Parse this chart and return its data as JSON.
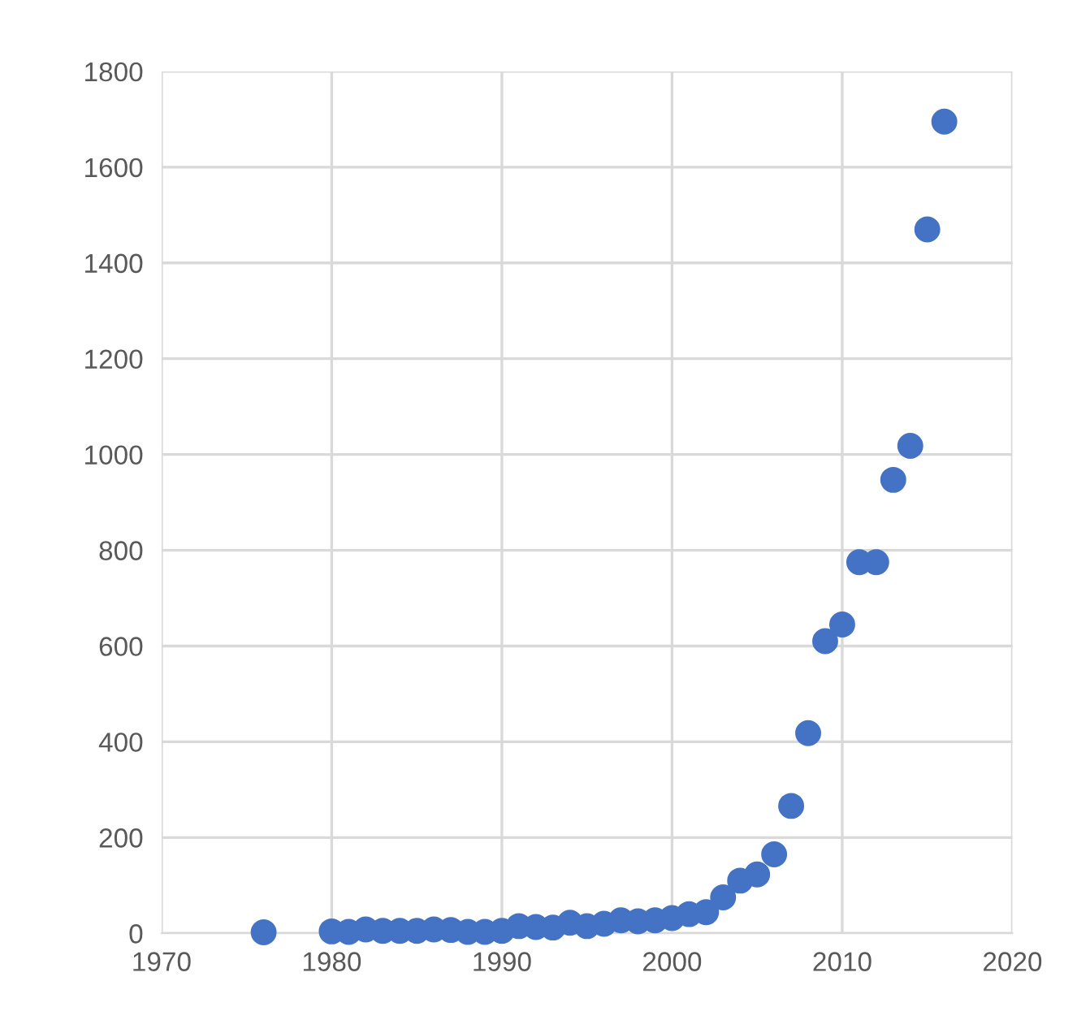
{
  "chart_data": {
    "type": "scatter",
    "x": [
      1976,
      1980,
      1981,
      1982,
      1983,
      1984,
      1985,
      1986,
      1987,
      1988,
      1989,
      1990,
      1991,
      1992,
      1993,
      1994,
      1995,
      1996,
      1997,
      1998,
      1999,
      2000,
      2001,
      2002,
      2003,
      2004,
      2005,
      2006,
      2007,
      2008,
      2009,
      2010,
      2011,
      2012,
      2013,
      2014,
      2015,
      2016
    ],
    "values": [
      2,
      4,
      3,
      8,
      5,
      5,
      5,
      8,
      7,
      3,
      3,
      5,
      15,
      13,
      12,
      22,
      15,
      20,
      27,
      25,
      27,
      32,
      40,
      44,
      75,
      110,
      123,
      165,
      266,
      418,
      610,
      645,
      775,
      775,
      947,
      1018,
      1470,
      1695
    ],
    "color": "#4472c4",
    "marker": "circle",
    "xlim": [
      1970,
      2020
    ],
    "xticks": [
      1970,
      1980,
      1990,
      2000,
      2010,
      2020
    ],
    "ylim": [
      0,
      1800
    ],
    "yticks": [
      0,
      200,
      400,
      600,
      800,
      1000,
      1200,
      1400,
      1600,
      1800
    ],
    "grid": true
  }
}
